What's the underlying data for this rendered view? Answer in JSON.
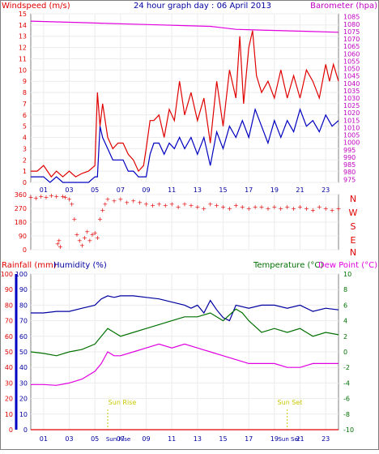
{
  "top": {
    "left_title": "Windspeed (m/s)",
    "center_title": "24 hour graph day : 06 April 2013",
    "right_title": "Barometer (hpa)",
    "colors": {
      "gust": "#e00000",
      "avg": "#0000c0",
      "baro": "#e000e0",
      "text_left": "#e00000",
      "text_center": "#0000a0",
      "text_right": "#c000c0"
    }
  },
  "mid": {
    "compass_letters": [
      "N",
      "W",
      "S",
      "E",
      "N"
    ],
    "compass_color": "#e00000"
  },
  "bottom": {
    "label_rain": "Rainfall (mm)",
    "label_humidity": "Humidity (%)",
    "label_temp": "Temperature (°C)",
    "label_dew": "Dew Point (°C)",
    "sun_rise": "Sun Rise",
    "sun_set": "Sun Set",
    "colors": {
      "rain": "#e00000",
      "humidity": "#0000a0",
      "temp": "#007000",
      "dew": "#e000e0",
      "sun": "#c8c800"
    }
  },
  "x_ticks": [
    "01",
    "03",
    "05",
    "07",
    "09",
    "11",
    "13",
    "15",
    "17",
    "19",
    "21",
    "23"
  ],
  "chart_data": [
    {
      "type": "line",
      "title": "24 hour graph day : 06 April 2013",
      "x_unit": "hour",
      "xlim": [
        0,
        24
      ],
      "y_left_label": "Windspeed (m/s)",
      "y_left_lim": [
        0,
        15
      ],
      "y_left_ticks": [
        0,
        1,
        2,
        3,
        4,
        5,
        6,
        7,
        8,
        9,
        10,
        11,
        12,
        13,
        14,
        15
      ],
      "y_right_label": "Barometer (hpa)",
      "y_right_lim": [
        973,
        1087
      ],
      "y_right_ticks": [
        975,
        980,
        985,
        990,
        995,
        1000,
        1005,
        1010,
        1015,
        1020,
        1025,
        1030,
        1035,
        1040,
        1045,
        1050,
        1055,
        1060,
        1065,
        1070,
        1075,
        1080,
        1085
      ],
      "series": [
        {
          "name": "Windspeed (m/s)",
          "axis": "left",
          "color": "#e00000",
          "x": [
            0,
            0.5,
            1,
            1.3,
            1.6,
            2,
            2.5,
            3,
            3.5,
            4,
            4.5,
            5,
            5.2,
            5.4,
            5.6,
            6,
            6.4,
            6.8,
            7.2,
            7.6,
            8,
            8.4,
            8.8,
            9,
            9.3,
            9.6,
            10,
            10.4,
            10.8,
            11.2,
            11.6,
            12,
            12.5,
            13,
            13.5,
            14,
            14.5,
            15,
            15.5,
            16,
            16.3,
            16.6,
            17,
            17.3,
            17.6,
            18,
            18.5,
            19,
            19.5,
            20,
            20.5,
            21,
            21.5,
            22,
            22.5,
            23,
            23.3,
            23.6,
            24
          ],
          "y": [
            1,
            1,
            1.5,
            1,
            0.5,
            1,
            0.5,
            1,
            0.5,
            0.8,
            1,
            1.5,
            8,
            5,
            7,
            4,
            3,
            3.5,
            3.5,
            2.5,
            2,
            1,
            1.5,
            3,
            5.5,
            5.5,
            6,
            4,
            6.5,
            5.5,
            9,
            6,
            8,
            5.5,
            7.5,
            3.5,
            9,
            5,
            10,
            7.5,
            13,
            7,
            12,
            13.5,
            9.5,
            8,
            9,
            7.5,
            10,
            7.5,
            9.5,
            7.5,
            10,
            9,
            7.5,
            10.5,
            9,
            10.5,
            9
          ]
        },
        {
          "name": "Avg",
          "axis": "left",
          "color": "#0000c0",
          "x": [
            0,
            0.5,
            1,
            1.5,
            2,
            2.5,
            3,
            3.5,
            4,
            4.5,
            5,
            5.2,
            5.4,
            5.6,
            6,
            6.4,
            6.8,
            7.2,
            7.6,
            8,
            8.4,
            8.8,
            9,
            9.3,
            9.6,
            10,
            10.4,
            10.8,
            11.2,
            11.6,
            12,
            12.5,
            13,
            13.5,
            14,
            14.5,
            15,
            15.5,
            16,
            16.5,
            17,
            17.5,
            18,
            18.5,
            19,
            19.5,
            20,
            20.5,
            21,
            21.5,
            22,
            22.5,
            23,
            23.5,
            24
          ],
          "y": [
            0.5,
            0.5,
            0.5,
            0,
            0.5,
            0,
            0,
            0,
            0,
            0,
            0.5,
            0.5,
            5,
            4,
            3,
            2,
            2,
            2,
            1,
            1,
            0.5,
            0.5,
            0.5,
            2.5,
            3.5,
            3.5,
            2.5,
            3.5,
            3,
            4,
            3,
            4,
            2.5,
            4,
            1.5,
            4.5,
            3,
            5,
            4,
            5.5,
            4,
            6.5,
            5,
            3.5,
            5.5,
            4,
            5.5,
            4.5,
            6.5,
            5,
            5.5,
            4.5,
            6,
            5,
            5.5
          ]
        },
        {
          "name": "Barometer (hpa)",
          "axis": "right",
          "color": "#e000e0",
          "x": [
            0,
            2,
            4,
            6,
            8,
            10,
            12,
            14,
            15,
            16,
            18,
            20,
            22,
            24
          ],
          "y": [
            1082,
            1081.5,
            1081,
            1080.5,
            1080,
            1079.5,
            1079,
            1078.5,
            1077.5,
            1076.5,
            1076,
            1075.5,
            1075,
            1074.5
          ]
        }
      ]
    },
    {
      "type": "scatter",
      "title": "",
      "x_unit": "hour",
      "xlim": [
        0,
        24
      ],
      "ylabel": "",
      "ylim": [
        0,
        360
      ],
      "y_ticks": [
        0,
        90,
        180,
        270,
        360
      ],
      "series": [
        {
          "name": "",
          "color": "#e00000",
          "x": [
            0,
            0.4,
            0.8,
            1.2,
            1.6,
            2,
            2.1,
            2.2,
            2.3,
            2.5,
            2.7,
            3,
            3.2,
            3.4,
            3.6,
            3.8,
            4,
            4.2,
            4.4,
            4.6,
            4.8,
            5,
            5.2,
            5.4,
            5.6,
            5.8,
            6,
            6.5,
            7,
            7.5,
            8,
            8.5,
            9,
            9.5,
            10,
            10.5,
            11,
            11.5,
            12,
            12.5,
            13,
            13.5,
            14,
            14.5,
            15,
            15.5,
            16,
            16.5,
            17,
            17.5,
            18,
            18.5,
            19,
            19.5,
            20,
            20.5,
            21,
            21.5,
            22,
            22.5,
            23,
            23.5,
            24
          ],
          "y": [
            345,
            340,
            350,
            345,
            355,
            350,
            40,
            60,
            20,
            350,
            345,
            330,
            300,
            200,
            100,
            60,
            30,
            80,
            120,
            60,
            100,
            110,
            80,
            200,
            260,
            300,
            330,
            320,
            330,
            310,
            320,
            310,
            300,
            290,
            300,
            290,
            300,
            280,
            300,
            290,
            280,
            270,
            300,
            290,
            280,
            270,
            290,
            280,
            270,
            280,
            280,
            270,
            280,
            270,
            280,
            270,
            280,
            270,
            260,
            280,
            270,
            260,
            270
          ]
        }
      ]
    },
    {
      "type": "line",
      "title": "",
      "x_unit": "hour",
      "xlim": [
        0,
        24
      ],
      "y_left_label": "Rainfall (mm)",
      "y_left_lim": [
        0,
        100
      ],
      "y_left_ticks": [
        0,
        5,
        10,
        15,
        20,
        25,
        30,
        35,
        40,
        45,
        50,
        55,
        60,
        65,
        70,
        75,
        80,
        85,
        90,
        95,
        100
      ],
      "y_left2_label": "Humidity (%)",
      "y_right_label": "Temperature (°C)",
      "y_right_lim": [
        -10,
        10
      ],
      "y_right_ticks": [
        -10,
        -8,
        -6,
        -4,
        -2,
        0,
        2,
        4,
        6,
        8,
        10
      ],
      "annotations": [
        {
          "text": "Sun Rise",
          "x": 6
        },
        {
          "text": "Sun Set",
          "x": 20
        }
      ],
      "series": [
        {
          "name": "Humidity (%)",
          "axis": "left",
          "color": "#0000a0",
          "x": [
            0,
            1,
            2,
            3,
            4,
            5,
            5.5,
            6,
            6.5,
            7,
            8,
            9,
            10,
            11,
            12,
            12.5,
            13,
            13.5,
            14,
            14.5,
            15,
            15.5,
            16,
            17,
            18,
            19,
            20,
            21,
            22,
            23,
            24
          ],
          "y": [
            75,
            75,
            76,
            76,
            78,
            80,
            84,
            86,
            85,
            86,
            86,
            85,
            84,
            82,
            80,
            78,
            80,
            75,
            83,
            77,
            72,
            70,
            80,
            78,
            80,
            80,
            78,
            80,
            76,
            78,
            77
          ]
        },
        {
          "name": "Temperature (°C)",
          "axis": "right",
          "color": "#007000",
          "x": [
            0,
            1,
            2,
            3,
            4,
            5,
            5.5,
            6,
            6.5,
            7,
            8,
            9,
            10,
            11,
            12,
            13,
            14,
            15,
            16,
            16.5,
            17,
            18,
            19,
            20,
            21,
            22,
            23,
            24
          ],
          "y": [
            0,
            -0.2,
            -0.5,
            0,
            0.3,
            1,
            2,
            3,
            2.5,
            2,
            2.5,
            3,
            3.5,
            4,
            4.5,
            4.5,
            5,
            4,
            5.5,
            5,
            4,
            2.5,
            3,
            2.5,
            3,
            2,
            2.5,
            2.2
          ]
        },
        {
          "name": "Dew Point (°C)",
          "axis": "right",
          "color": "#e000e0",
          "x": [
            0,
            1,
            2,
            3,
            4,
            5,
            5.5,
            6,
            6.5,
            7,
            8,
            9,
            10,
            11,
            12,
            13,
            14,
            15,
            16,
            17,
            18,
            19,
            20,
            21,
            22,
            23,
            24
          ],
          "y": [
            -4.2,
            -4.2,
            -4.3,
            -4,
            -3.5,
            -2.5,
            -1.5,
            0,
            -0.5,
            -0.5,
            0,
            0.5,
            1,
            0.5,
            1,
            0.5,
            0,
            -0.5,
            -1,
            -1.5,
            -1.5,
            -1.5,
            -2,
            -2,
            -1.5,
            -1.5,
            -1.5
          ]
        },
        {
          "name": "Rainfall (mm)",
          "axis": "left",
          "color": "#e00000",
          "x": [
            0,
            24
          ],
          "y": [
            0,
            0
          ]
        }
      ]
    }
  ]
}
